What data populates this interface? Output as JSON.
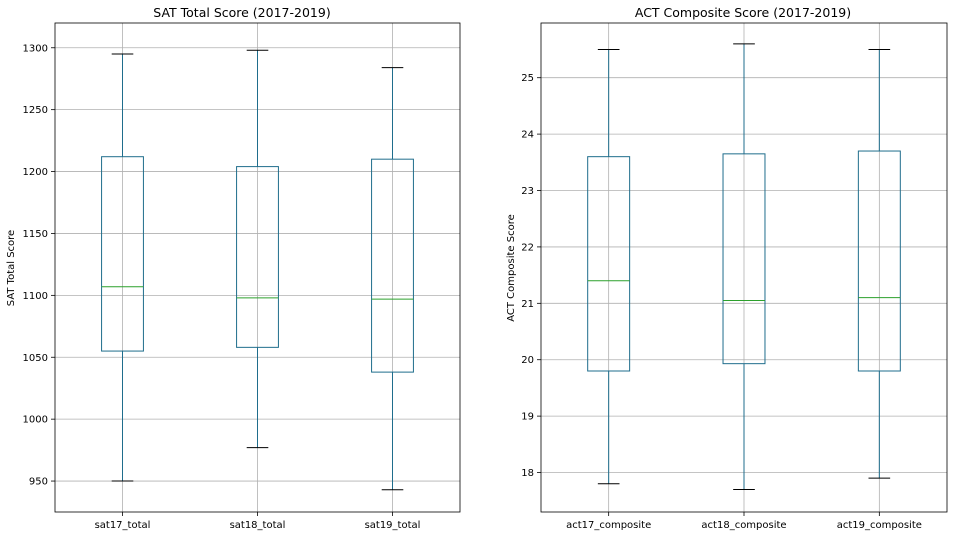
{
  "chart_data": [
    {
      "type": "box",
      "title": "SAT Total Score (2017-2019)",
      "xlabel": "",
      "ylabel": "SAT Total Score",
      "ylim": [
        925,
        1320
      ],
      "yticks": [
        950,
        1000,
        1050,
        1100,
        1150,
        1200,
        1250,
        1300
      ],
      "grid": true,
      "categories": [
        "sat17_total",
        "sat18_total",
        "sat19_total"
      ],
      "boxes": [
        {
          "name": "sat17_total",
          "whislo": 950,
          "q1": 1055,
          "med": 1107,
          "q3": 1212,
          "whishi": 1295
        },
        {
          "name": "sat18_total",
          "whislo": 977,
          "q1": 1058,
          "med": 1098,
          "q3": 1204,
          "whishi": 1298
        },
        {
          "name": "sat19_total",
          "whislo": 943,
          "q1": 1038,
          "med": 1097,
          "q3": 1210,
          "whishi": 1284
        }
      ],
      "colors": {
        "box": "#1f6d8c",
        "median": "#2ca02c",
        "cap": "#000000",
        "grid": "#b0b0b0"
      }
    },
    {
      "type": "box",
      "title": "ACT Composite Score (2017-2019)",
      "xlabel": "",
      "ylabel": "ACT Composite Score",
      "ylim": [
        17.3,
        25.97
      ],
      "yticks": [
        18,
        19,
        20,
        21,
        22,
        23,
        24,
        25
      ],
      "grid": true,
      "categories": [
        "act17_composite",
        "act18_composite",
        "act19_composite"
      ],
      "boxes": [
        {
          "name": "act17_composite",
          "whislo": 17.8,
          "q1": 19.8,
          "med": 21.4,
          "q3": 23.6,
          "whishi": 25.5
        },
        {
          "name": "act18_composite",
          "whislo": 17.7,
          "q1": 19.93,
          "med": 21.05,
          "q3": 23.65,
          "whishi": 25.6
        },
        {
          "name": "act19_composite",
          "whislo": 17.9,
          "q1": 19.8,
          "med": 21.1,
          "q3": 23.7,
          "whishi": 25.5
        }
      ],
      "colors": {
        "box": "#1f6d8c",
        "median": "#2ca02c",
        "cap": "#000000",
        "grid": "#b0b0b0"
      }
    }
  ]
}
